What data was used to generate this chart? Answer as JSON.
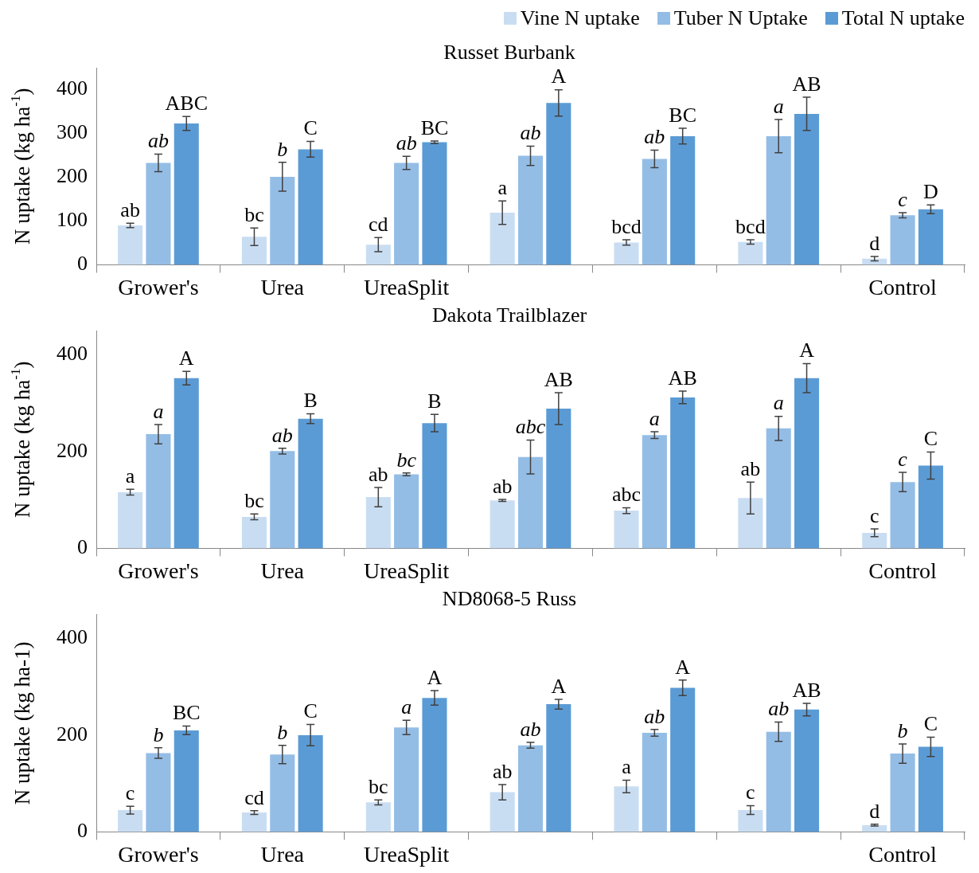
{
  "chart_data": [
    {
      "type": "bar",
      "title": "Russet Burbank",
      "ylabel": "N uptake (kg ha$^{-1}$)",
      "categories": [
        "Grower's",
        "Urea",
        "UreaSplit",
        null,
        null,
        null,
        "Control"
      ],
      "ylim": [
        0,
        450
      ],
      "yticks": [
        0,
        100,
        200,
        300,
        400
      ],
      "legend": "top right",
      "series": [
        {
          "name": "Vine N uptake",
          "color": "#c9ddf2",
          "values": [
            90,
            64,
            46,
            119,
            51,
            52,
            14
          ],
          "errors": [
            5,
            20,
            16,
            27,
            6,
            5,
            5
          ],
          "value_labels": [
            "ab",
            "bc",
            "cd",
            "a",
            "bcd",
            "bcd",
            "d"
          ]
        },
        {
          "name": "Tuber N Uptake",
          "color": "#94bde6",
          "values": [
            233,
            201,
            233,
            249,
            242,
            294,
            113
          ],
          "errors": [
            20,
            33,
            15,
            22,
            20,
            38,
            6
          ],
          "value_labels": [
            "ab",
            "b",
            "ab",
            "ab",
            "ab",
            "a",
            "c"
          ]
        },
        {
          "name": "Total N uptake",
          "color": "#5b9bd5",
          "values": [
            323,
            264,
            280,
            370,
            294,
            345,
            127
          ],
          "errors": [
            16,
            18,
            3,
            30,
            18,
            38,
            10
          ],
          "value_labels": [
            "ABC",
            "C",
            "BC",
            "A",
            "BC",
            "AB",
            "D"
          ]
        }
      ]
    },
    {
      "type": "bar",
      "title": "Dakota Trailblazer",
      "ylabel": "N uptake (kg ha$^{-1}$)",
      "categories": [
        "Grower's",
        "Urea",
        "UreaSplit",
        null,
        null,
        null,
        "Control"
      ],
      "ylim": [
        0,
        450
      ],
      "yticks": [
        0,
        200,
        400
      ],
      "series": [
        {
          "color": "#c9ddf2",
          "values": [
            116,
            65,
            106,
            99,
            78,
            104,
            32
          ],
          "errors": [
            6,
            6,
            20,
            2,
            6,
            33,
            8
          ],
          "value_labels": [
            "a",
            "bc",
            "ab",
            "ab",
            "abc",
            "ab",
            "c"
          ]
        },
        {
          "color": "#94bde6",
          "values": [
            236,
            201,
            153,
            189,
            234,
            248,
            137
          ],
          "errors": [
            20,
            6,
            3,
            35,
            7,
            25,
            20
          ],
          "value_labels": [
            "a",
            "ab",
            "bc",
            "abc",
            "a",
            "a",
            "c"
          ]
        },
        {
          "color": "#5b9bd5",
          "values": [
            352,
            268,
            259,
            289,
            312,
            352,
            171
          ],
          "errors": [
            14,
            10,
            18,
            33,
            13,
            30,
            28
          ],
          "value_labels": [
            "A",
            "B",
            "B",
            "AB",
            "AB",
            "A",
            "C"
          ]
        }
      ]
    },
    {
      "type": "bar",
      "title": "ND8068-5 Russ",
      "ylabel": "N uptake (kg ha-1)",
      "categories": [
        "Grower's",
        "Urea",
        "UreaSplit",
        null,
        null,
        null,
        "Control"
      ],
      "ylim": [
        0,
        450
      ],
      "yticks": [
        0,
        200,
        400
      ],
      "series": [
        {
          "color": "#c9ddf2",
          "values": [
            45,
            40,
            61,
            82,
            94,
            45,
            14
          ],
          "errors": [
            8,
            4,
            5,
            16,
            13,
            9,
            2
          ],
          "value_labels": [
            "c",
            "cd",
            "bc",
            "ab",
            "a",
            "c",
            "d"
          ]
        },
        {
          "color": "#94bde6",
          "values": [
            163,
            160,
            216,
            179,
            205,
            207,
            162
          ],
          "errors": [
            11,
            19,
            15,
            6,
            7,
            20,
            20
          ],
          "value_labels": [
            "b",
            "b",
            "a",
            "ab",
            "ab",
            "ab",
            "b"
          ]
        },
        {
          "color": "#5b9bd5",
          "values": [
            210,
            200,
            277,
            264,
            298,
            253,
            176
          ],
          "errors": [
            9,
            22,
            15,
            10,
            16,
            13,
            20
          ],
          "value_labels": [
            "BC",
            "C",
            "A",
            "A",
            "A",
            "AB",
            "C"
          ]
        }
      ]
    }
  ]
}
